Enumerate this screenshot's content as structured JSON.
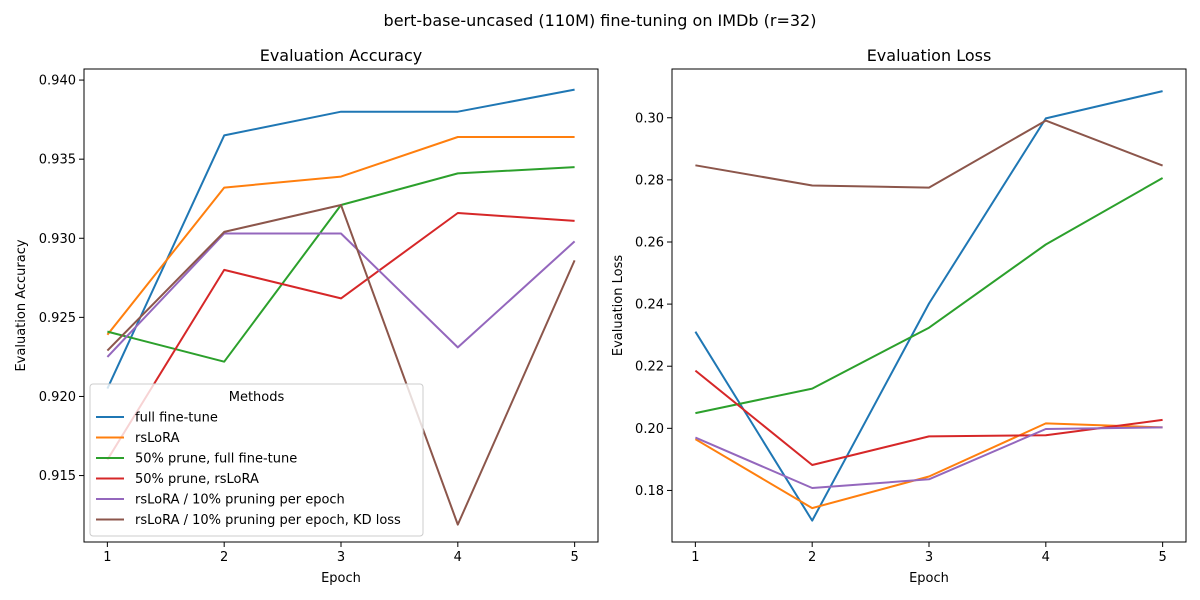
{
  "suptitle": "bert-base-uncased (110M) fine-tuning on IMDb (r=32)",
  "chart_data": [
    {
      "type": "line",
      "title": "Evaluation Accuracy",
      "xlabel": "Epoch",
      "ylabel": "Evaluation Accuracy",
      "x": [
        1,
        2,
        3,
        4,
        5
      ],
      "xticks": [
        "1",
        "2",
        "3",
        "4",
        "5"
      ],
      "yticks": [
        "0.915",
        "0.920",
        "0.925",
        "0.930",
        "0.935",
        "0.940"
      ],
      "ytick_values": [
        0.915,
        0.92,
        0.925,
        0.93,
        0.935,
        0.94
      ],
      "xlim": [
        0.8,
        5.2
      ],
      "ylim": [
        0.9108,
        0.9407
      ],
      "grid": false,
      "legend": {
        "title": "Methods",
        "position": "lower-left"
      },
      "series": [
        {
          "name": "full fine-tune",
          "color": "#1f77b4",
          "values": [
            0.9205,
            0.9365,
            0.938,
            0.938,
            0.9394
          ]
        },
        {
          "name": "rsLoRA",
          "color": "#ff7f0e",
          "values": [
            0.9239,
            0.9332,
            0.9339,
            0.9364,
            0.9364
          ]
        },
        {
          "name": "50% prune, full fine-tune",
          "color": "#2ca02c",
          "values": [
            0.9241,
            0.9222,
            0.9321,
            0.9341,
            0.9345
          ]
        },
        {
          "name": "50% prune, rsLoRA",
          "color": "#d62728",
          "values": [
            0.916,
            0.928,
            0.9262,
            0.9316,
            0.9311
          ]
        },
        {
          "name": "rsLoRA / 10% pruning per epoch",
          "color": "#9467bd",
          "values": [
            0.9225,
            0.9303,
            0.9303,
            0.9231,
            0.9298
          ]
        },
        {
          "name": "rsLoRA / 10% pruning per epoch, KD loss",
          "color": "#8c564b",
          "values": [
            0.9229,
            0.9304,
            0.9321,
            0.9119,
            0.9286
          ]
        }
      ]
    },
    {
      "type": "line",
      "title": "Evaluation Loss",
      "xlabel": "Epoch",
      "ylabel": "Evaluation Loss",
      "x": [
        1,
        2,
        3,
        4,
        5
      ],
      "xticks": [
        "1",
        "2",
        "3",
        "4",
        "5"
      ],
      "yticks": [
        "0.18",
        "0.20",
        "0.22",
        "0.24",
        "0.26",
        "0.28",
        "0.30"
      ],
      "ytick_values": [
        0.18,
        0.2,
        0.22,
        0.24,
        0.26,
        0.28,
        0.3
      ],
      "xlim": [
        0.8,
        5.2
      ],
      "ylim": [
        0.1634,
        0.3157
      ],
      "grid": false,
      "series": [
        {
          "name": "full fine-tune",
          "color": "#1f77b4",
          "values": [
            0.2311,
            0.1703,
            0.2402,
            0.2998,
            0.3086
          ]
        },
        {
          "name": "rsLoRA",
          "color": "#ff7f0e",
          "values": [
            0.1965,
            0.1743,
            0.1845,
            0.2016,
            0.2003
          ]
        },
        {
          "name": "50% prune, full fine-tune",
          "color": "#2ca02c",
          "values": [
            0.2049,
            0.2128,
            0.2324,
            0.2592,
            0.2806
          ]
        },
        {
          "name": "50% prune, rsLoRA",
          "color": "#d62728",
          "values": [
            0.2186,
            0.1882,
            0.1974,
            0.1978,
            0.2027
          ]
        },
        {
          "name": "rsLoRA / 10% pruning per epoch",
          "color": "#9467bd",
          "values": [
            0.197,
            0.1808,
            0.1836,
            0.1998,
            0.2003
          ]
        },
        {
          "name": "rsLoRA / 10% pruning per epoch, KD loss",
          "color": "#8c564b",
          "values": [
            0.2847,
            0.2782,
            0.2775,
            0.2991,
            0.2846
          ]
        }
      ]
    }
  ]
}
